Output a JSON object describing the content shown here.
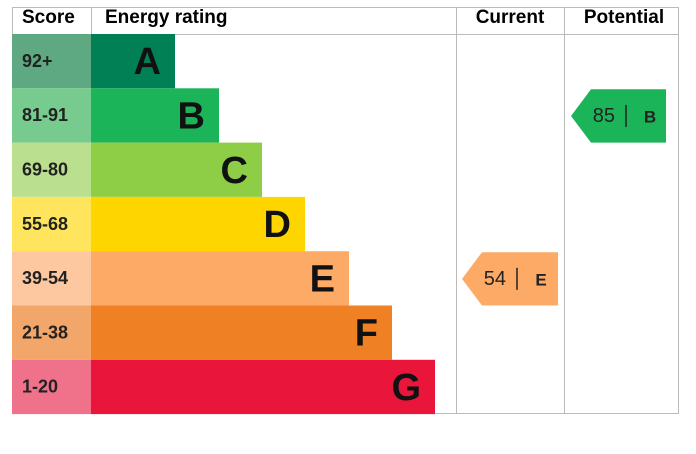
{
  "header": {
    "score": "Score",
    "rating": "Energy rating",
    "current": "Current",
    "potential": "Potential"
  },
  "bands": [
    {
      "score": "92+",
      "letter": "A",
      "color": "#008054",
      "score_color": "#5ea982"
    },
    {
      "score": "81-91",
      "letter": "B",
      "color": "#1cb459",
      "score_color": "#77cb8f"
    },
    {
      "score": "69-80",
      "letter": "C",
      "color": "#8dce46",
      "score_color": "#badf8f"
    },
    {
      "score": "55-68",
      "letter": "D",
      "color": "#ffd500",
      "score_color": "#ffe45e"
    },
    {
      "score": "39-54",
      "letter": "E",
      "color": "#fcaa65",
      "score_color": "#fdc8a0"
    },
    {
      "score": "21-38",
      "letter": "F",
      "color": "#ef8023",
      "score_color": "#f3a66a"
    },
    {
      "score": "1-20",
      "letter": "G",
      "color": "#e9153b",
      "score_color": "#f0718a"
    }
  ],
  "current": {
    "value": 54,
    "letter": "E"
  },
  "potential": {
    "value": 85,
    "letter": "B"
  }
}
